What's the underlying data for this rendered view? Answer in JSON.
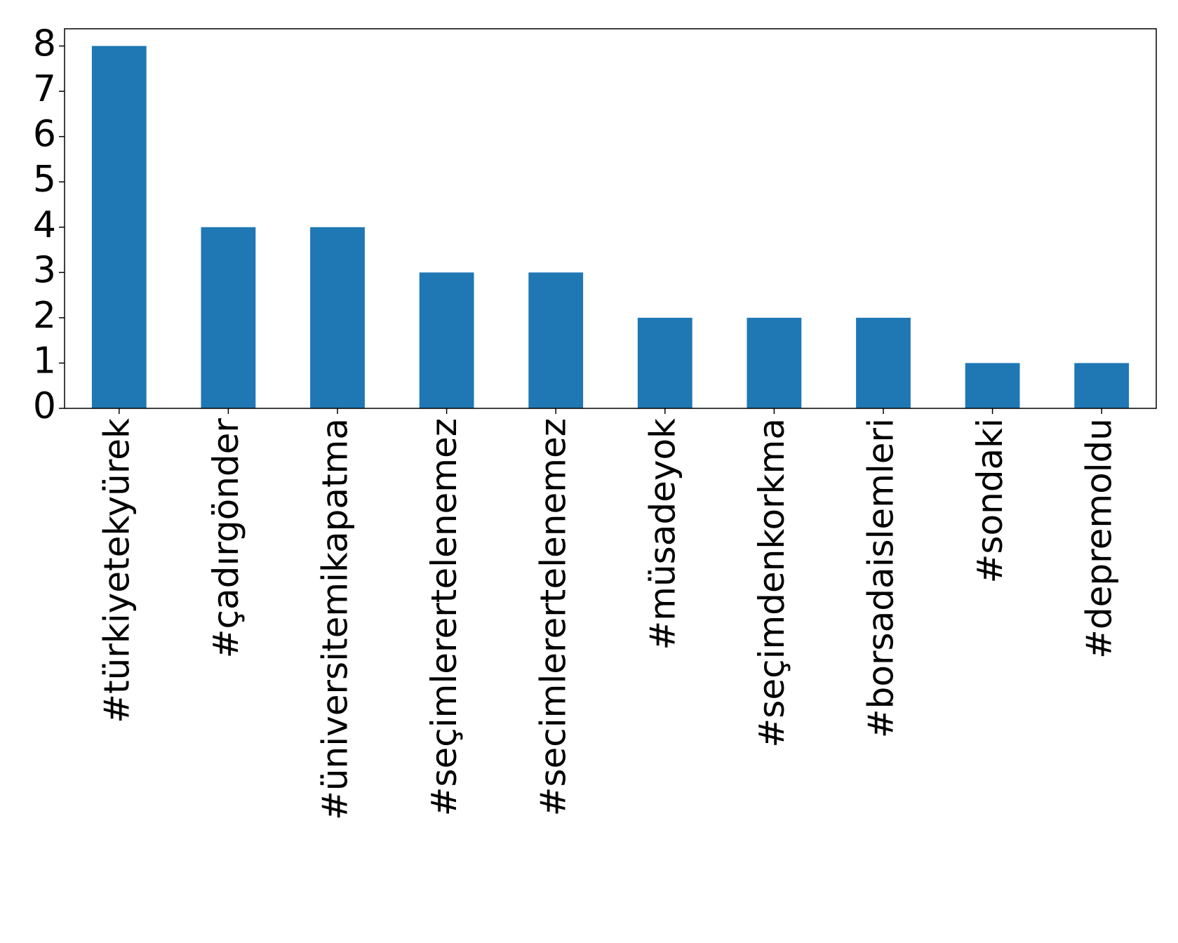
{
  "chart_data": {
    "type": "bar",
    "categories": [
      "#türkiyetekyürek",
      "#çadırgönder",
      "#üniversitemikapatma",
      "#seçimlerertelenemez",
      "#secimlerertelenemez",
      "#müsadeyok",
      "#seçimdenkorkma",
      "#borsadaislemleri",
      "#sondaki",
      "#depremoldu"
    ],
    "values": [
      8,
      4,
      4,
      3,
      3,
      2,
      2,
      2,
      1,
      1
    ],
    "color": "#1f77b4",
    "ylim": [
      0,
      8.38
    ],
    "yticks": [
      0,
      1,
      2,
      3,
      4,
      5,
      6,
      7,
      8
    ],
    "grid": false
  }
}
